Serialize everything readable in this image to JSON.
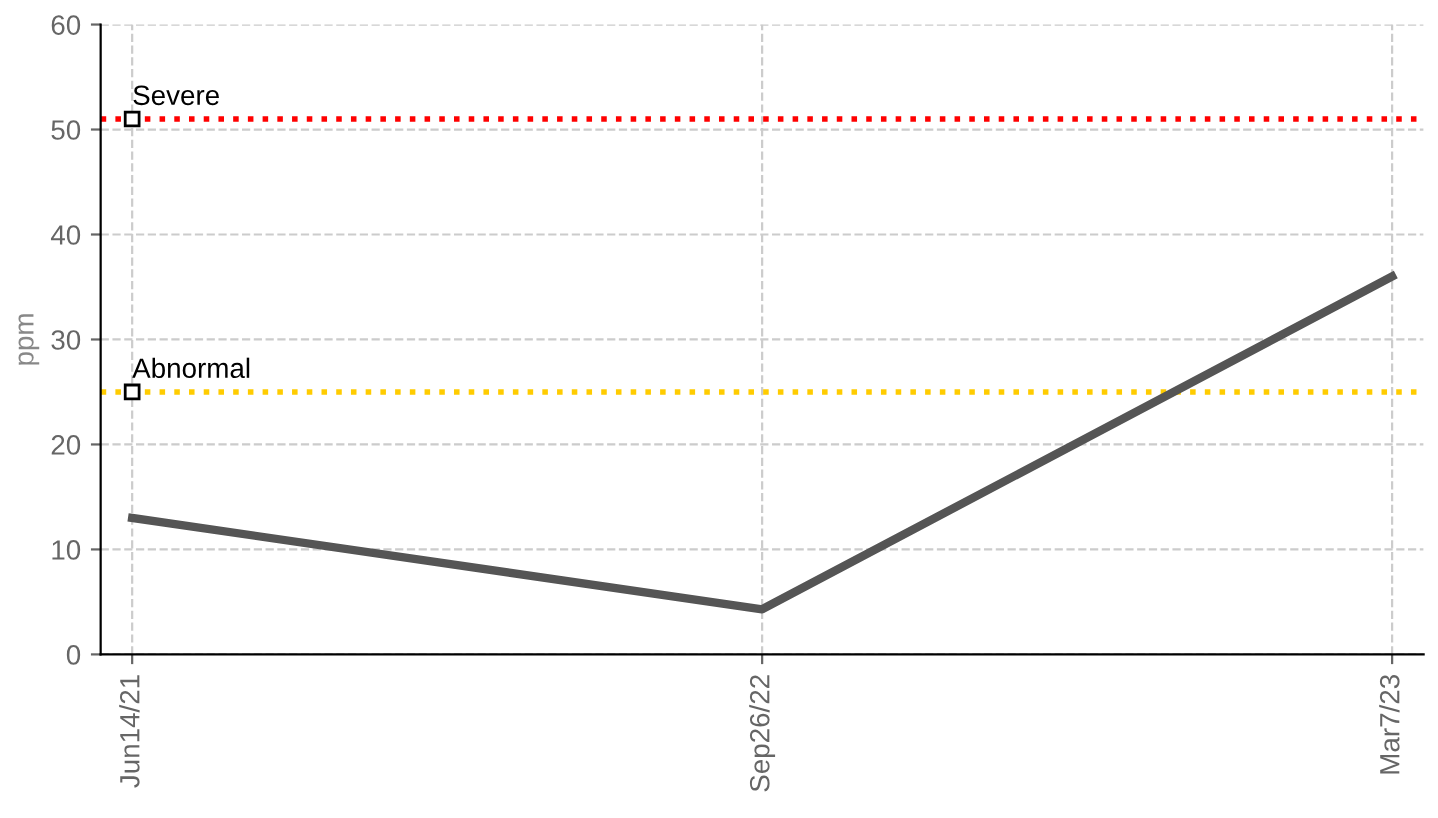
{
  "chart_data": {
    "type": "line",
    "ylabel": "ppm",
    "categories": [
      "Jun14/21",
      "Sep26/22",
      "Mar7/23"
    ],
    "series": [
      {
        "color": "#555555",
        "values": [
          13,
          4.3,
          36
        ]
      }
    ],
    "ylim": [
      0,
      60
    ],
    "yticks": [
      0,
      10,
      20,
      30,
      40,
      50,
      60
    ],
    "grid": true,
    "marker": "none",
    "line_style": "solid",
    "ref_lines": [
      {
        "axis": "y",
        "value": 51,
        "label": "Severe",
        "color": "#ff0000",
        "line_style": "dotted"
      },
      {
        "axis": "y",
        "value": 25,
        "label": "Abnormal",
        "color": "#ffcc00",
        "line_style": "dotted"
      }
    ]
  }
}
